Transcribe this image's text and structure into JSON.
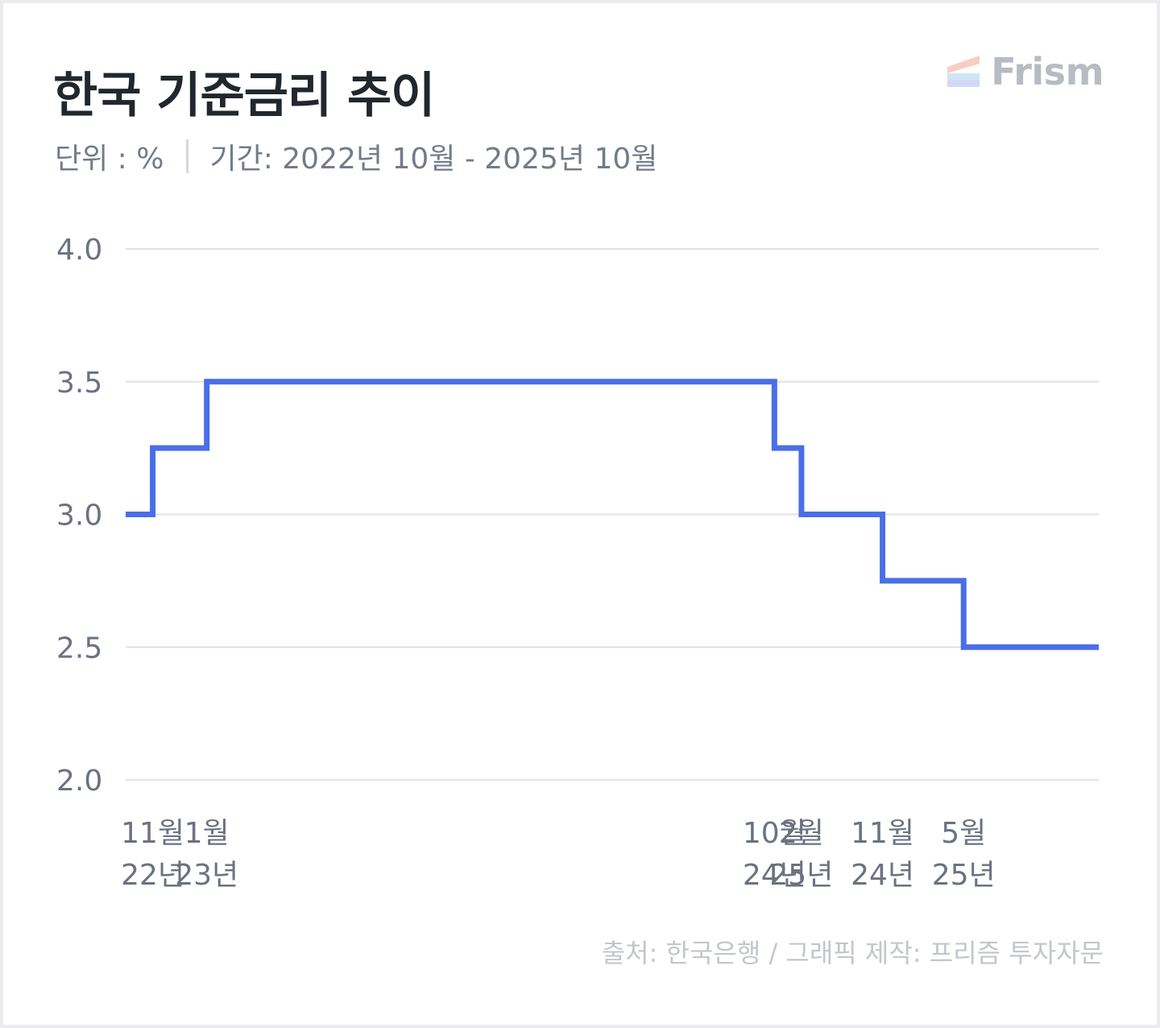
{
  "header": {
    "title": "한국 기준금리 추이",
    "unit": "단위 : %",
    "period": "기간: 2022년 10월 - 2025년 10월"
  },
  "brand": {
    "logo_text": "Frism",
    "logo_icon": "frism-stripes-icon"
  },
  "footer": {
    "source": "출처: 한국은행 / 그래픽 제작: 프리즘 투자자문"
  },
  "colors": {
    "line": "#4a6ee8",
    "grid": "#dfe1e6",
    "axis_text": "#6b7280",
    "title": "#22272e"
  },
  "chart_data": {
    "type": "line",
    "step": true,
    "ylim": [
      2.0,
      4.0
    ],
    "yticks": [
      "4.0",
      "3.5",
      "3.0",
      "2.5",
      "2.0"
    ],
    "ytick_values": [
      4.0,
      3.5,
      3.0,
      2.5,
      2.0
    ],
    "xlim": [
      "2022-10",
      "2025-10"
    ],
    "x": [
      "2022-10",
      "2022-11",
      "2023-01",
      "2024-10",
      "2024-11",
      "2025-02",
      "2025-05",
      "2025-10"
    ],
    "values": [
      3.0,
      3.25,
      3.5,
      3.25,
      3.0,
      2.75,
      2.5,
      2.5
    ],
    "xtick_labels": [
      {
        "month": "11월",
        "year": "22년"
      },
      {
        "month": "1월",
        "year": "23년"
      },
      {
        "month": "10월",
        "year": "24년"
      },
      {
        "month": "2월",
        "year": "25년"
      },
      {
        "month": "11월",
        "year": "24년"
      },
      {
        "month": "5월",
        "year": "25년"
      }
    ],
    "grid": true
  }
}
